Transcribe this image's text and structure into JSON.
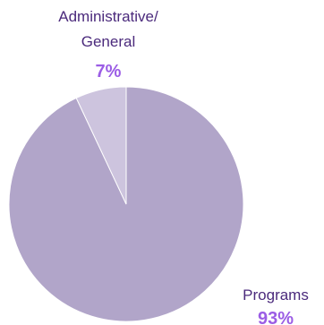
{
  "chart_data": {
    "type": "pie",
    "title": "",
    "start_angle_deg": 0,
    "direction": "clockwise",
    "slices": [
      {
        "label_lines": [
          "Programs"
        ],
        "value": 93,
        "percent_label": "93%",
        "color": "#b1a5c9",
        "label_position": "bottom-right"
      },
      {
        "label_lines": [
          "Administrative/",
          "General"
        ],
        "value": 7,
        "percent_label": "7%",
        "color": "#cdc4de",
        "label_position": "top"
      }
    ],
    "label_color": "#4b2a7c",
    "percent_color": "#9b5de5",
    "slice_border_color": "#ffffff"
  }
}
